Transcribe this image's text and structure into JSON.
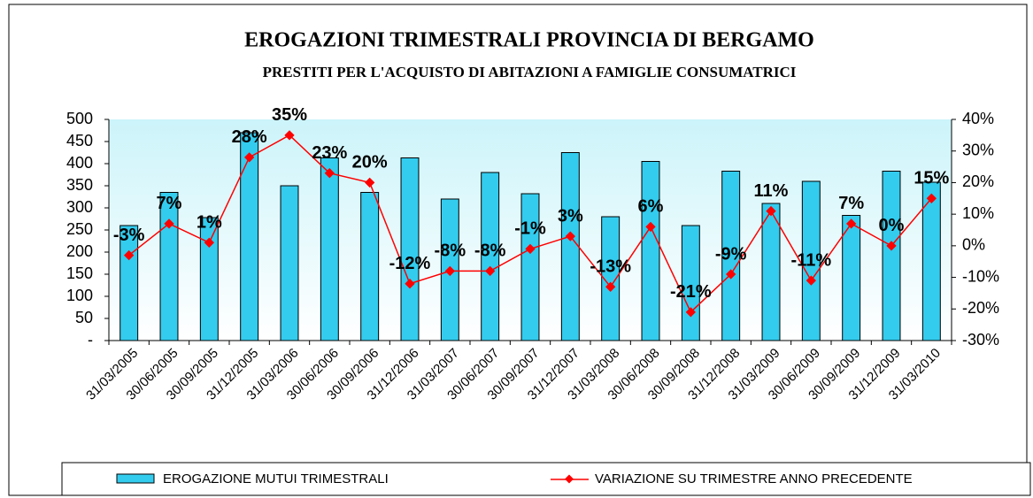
{
  "chart_data": {
    "type": "bar_line",
    "title": "EROGAZIONI TRIMESTRALI PROVINCIA DI BERGAMO",
    "subtitle": "PRESTITI PER L'ACQUISTO DI ABITAZIONI A FAMIGLIE CONSUMATRICI",
    "categories": [
      "31/03/2005",
      "30/06/2005",
      "30/09/2005",
      "31/12/2005",
      "31/03/2006",
      "30/06/2006",
      "30/09/2006",
      "31/12/2006",
      "31/03/2007",
      "30/06/2007",
      "30/09/2007",
      "31/12/2007",
      "31/03/2008",
      "30/06/2008",
      "30/09/2008",
      "31/12/2008",
      "31/03/2009",
      "30/06/2009",
      "30/09/2009",
      "31/12/2009",
      "31/03/2010"
    ],
    "series": [
      {
        "name": "EROGAZIONE MUTUI TRIMESTRALI",
        "type": "bar",
        "color": "#33ccee",
        "values": [
          260,
          335,
          278,
          470,
          350,
          413,
          335,
          413,
          320,
          380,
          332,
          425,
          280,
          405,
          260,
          383,
          310,
          360,
          283,
          383,
          358
        ]
      },
      {
        "name": "VARIAZIONE SU TRIMESTRE ANNO PRECEDENTE",
        "type": "line",
        "axis": "y2",
        "color": "#ff0000",
        "values": [
          -3,
          7,
          1,
          28,
          35,
          23,
          20,
          -12,
          -8,
          -8,
          -1,
          3,
          -13,
          6,
          -21,
          -9,
          11,
          -11,
          7,
          0,
          15
        ],
        "value_labels": [
          "-3%",
          "7%",
          "1%",
          "28%",
          "35%",
          "23%",
          "20%",
          "-12%",
          "-8%",
          "-8%",
          "-1%",
          "3%",
          "-13%",
          "6%",
          "-21%",
          "-9%",
          "11%",
          "-11%",
          "7%",
          "0%",
          "15%"
        ]
      }
    ],
    "ylim": [
      0,
      500
    ],
    "yticks": [
      {
        "value": 0,
        "label": "-"
      },
      50,
      100,
      150,
      200,
      250,
      300,
      350,
      400,
      450,
      500
    ],
    "y2lim": [
      -30,
      40
    ],
    "y2ticks": [
      {
        "value": -30,
        "label": "-30%"
      },
      {
        "value": -20,
        "label": "-20%"
      },
      {
        "value": -10,
        "label": "-10%"
      },
      {
        "value": 0,
        "label": "0%"
      },
      {
        "value": 10,
        "label": "10%"
      },
      {
        "value": 20,
        "label": "20%"
      },
      {
        "value": 30,
        "label": "30%"
      },
      {
        "value": 40,
        "label": "40%"
      }
    ]
  }
}
